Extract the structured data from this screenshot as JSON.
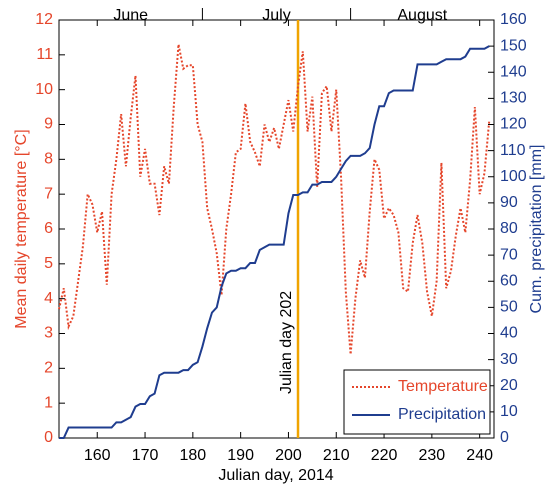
{
  "chart_data": {
    "type": "line",
    "xlabel": "Julian day, 2014",
    "ylabel": "Mean daily temperature [°C]",
    "y2label": "Cum. precipitation [mm]",
    "xlim": [
      152,
      243
    ],
    "xticks": [
      160,
      170,
      180,
      190,
      200,
      210,
      220,
      230,
      240
    ],
    "ylim": [
      0,
      12
    ],
    "yticks": [
      0,
      1,
      2,
      3,
      4,
      5,
      6,
      7,
      8,
      9,
      10,
      11,
      12
    ],
    "y2lim": [
      0,
      160
    ],
    "y2ticks": [
      0,
      10,
      20,
      30,
      40,
      50,
      60,
      70,
      80,
      90,
      100,
      110,
      120,
      130,
      140,
      150,
      160
    ],
    "months": [
      "June",
      "July",
      "August"
    ],
    "month_ticks": [
      182,
      213
    ],
    "vline": {
      "x": 202,
      "label": "Julian day 202",
      "color": "#f0a400"
    },
    "legend": "lower right",
    "x": [
      152,
      153,
      154,
      155,
      156,
      157,
      158,
      159,
      160,
      161,
      162,
      163,
      164,
      165,
      166,
      167,
      168,
      169,
      170,
      171,
      172,
      173,
      174,
      175,
      176,
      177,
      178,
      179,
      180,
      181,
      182,
      183,
      184,
      185,
      186,
      187,
      188,
      189,
      190,
      191,
      192,
      193,
      194,
      195,
      196,
      197,
      198,
      199,
      200,
      201,
      202,
      203,
      204,
      205,
      206,
      207,
      208,
      209,
      210,
      211,
      212,
      213,
      214,
      215,
      216,
      217,
      218,
      219,
      220,
      221,
      222,
      223,
      224,
      225,
      226,
      227,
      228,
      229,
      230,
      231,
      232,
      233,
      234,
      235,
      236,
      237,
      238,
      239,
      240,
      241,
      242
    ],
    "series": [
      {
        "name": "Temperature",
        "color": "#e5462b",
        "axis": "y",
        "dash": "dotted",
        "values": [
          3.7,
          4.3,
          3.2,
          3.5,
          4.5,
          5.5,
          7.0,
          6.7,
          5.9,
          6.5,
          4.4,
          7.0,
          8.0,
          9.3,
          7.8,
          9.2,
          10.4,
          7.5,
          8.3,
          7.3,
          7.3,
          6.4,
          7.8,
          7.3,
          9.5,
          11.3,
          10.6,
          10.7,
          10.7,
          9.0,
          8.5,
          6.6,
          6.0,
          5.3,
          4.1,
          6.0,
          7.0,
          8.2,
          8.3,
          9.6,
          8.5,
          8.2,
          7.8,
          9.0,
          8.5,
          8.9,
          8.3,
          9.0,
          9.7,
          8.8,
          10.1,
          11.1,
          8.8,
          9.8,
          7.2,
          9.9,
          10.1,
          8.8,
          10.0,
          7.5,
          4.2,
          2.4,
          4.0,
          5.1,
          4.6,
          6.5,
          8.0,
          7.7,
          6.3,
          6.6,
          6.4,
          5.9,
          4.3,
          4.2,
          5.6,
          6.4,
          5.6,
          4.2,
          3.5,
          4.5,
          7.9,
          4.3,
          4.8,
          5.8,
          6.6,
          5.9,
          7.4,
          9.5,
          7.0,
          7.6,
          9.1
        ]
      },
      {
        "name": "Precipitation",
        "color": "#1f3d8f",
        "axis": "y2",
        "dash": "solid",
        "values": [
          0,
          0,
          4,
          4,
          4,
          4,
          4,
          4,
          4,
          4,
          4,
          4,
          6,
          6,
          7,
          8,
          12,
          13,
          13,
          16,
          17,
          24,
          25,
          25,
          25,
          25,
          26,
          26,
          28,
          29,
          35,
          42,
          48,
          50,
          58,
          63,
          64,
          64,
          65,
          65,
          67,
          67,
          72,
          73,
          74,
          74,
          74,
          74,
          86,
          93,
          93,
          94,
          94,
          97,
          97,
          98,
          98,
          98,
          100,
          103,
          106,
          108,
          108,
          108,
          109,
          111,
          120,
          127,
          127,
          132,
          133,
          133,
          133,
          133,
          133,
          143,
          143,
          143,
          143,
          143,
          144,
          145,
          145,
          145,
          145,
          146,
          149,
          149,
          149,
          149,
          150
        ]
      }
    ]
  }
}
